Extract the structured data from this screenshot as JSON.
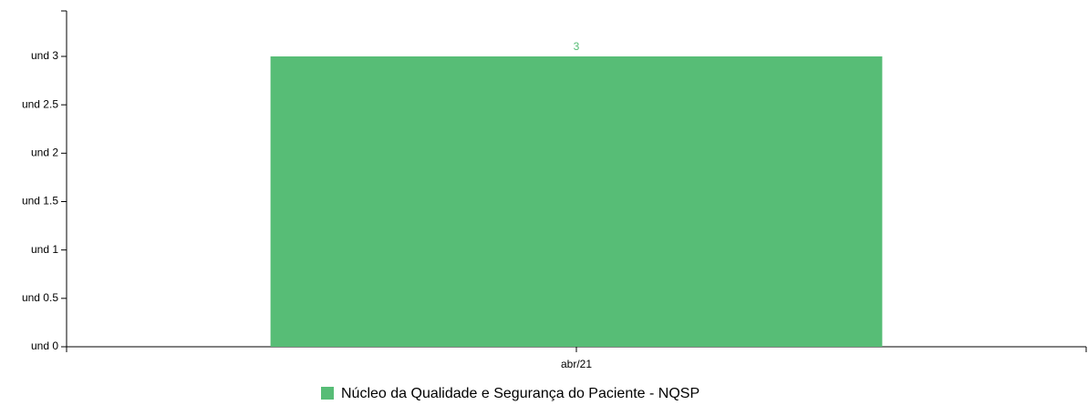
{
  "chart_data": {
    "type": "bar",
    "categories": [
      "abr/21"
    ],
    "series": [
      {
        "name": "Núcleo da Qualidade e Segurança do Paciente - NQSP",
        "color": "#57bd76",
        "values": [
          3
        ]
      }
    ],
    "ylim": [
      0,
      3.47
    ],
    "yticks": [
      {
        "value": 0,
        "label": "und 0"
      },
      {
        "value": 0.5,
        "label": "und 0.5"
      },
      {
        "value": 1,
        "label": "und 1"
      },
      {
        "value": 1.5,
        "label": "und 1.5"
      },
      {
        "value": 2,
        "label": "und 2"
      },
      {
        "value": 2.5,
        "label": "und 2.5"
      },
      {
        "value": 3,
        "label": "und 3"
      }
    ],
    "grid": false,
    "legend": "bottom"
  }
}
